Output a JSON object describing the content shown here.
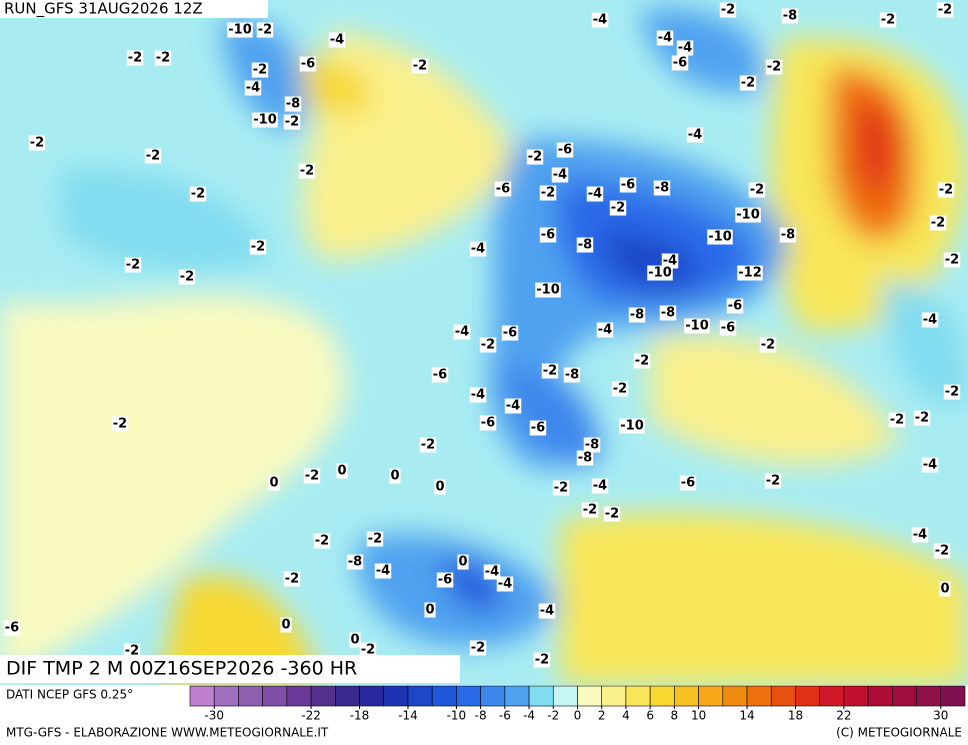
{
  "header": {
    "run": "RUN_GFS 31AUG2026 12Z",
    "title": "DIF TMP 2 M 00Z16SEP2026 -360 HR",
    "source": "DATI NCEP GFS 0.25°",
    "credit": "MTG-GFS - ELABORAZIONE WWW.METEOGIORNALE.IT",
    "copyright": "(C) METEOGIORNALE"
  },
  "colorbar": {
    "lim": [
      -32,
      32
    ],
    "colors": [
      "#c080d0",
      "#a070c0",
      "#9060b0",
      "#8050a8",
      "#6a3a9a",
      "#52308c",
      "#3a2a90",
      "#2a2aa0",
      "#1e32b4",
      "#1e46c8",
      "#2058dc",
      "#2a6ae8",
      "#3c86ec",
      "#50a2f0",
      "#80dcf0",
      "#c8f6f4",
      "#fafac0",
      "#faf08c",
      "#f8e658",
      "#f8d830",
      "#f8c020",
      "#f8a818",
      "#f08c10",
      "#f07010",
      "#e85010",
      "#e03018",
      "#d01828",
      "#c01030",
      "#b00c38",
      "#a00c40",
      "#901048",
      "#801050"
    ],
    "ticks": [
      -30,
      -22,
      -18,
      -14,
      -10,
      -8,
      -6,
      -4,
      -2,
      0,
      2,
      4,
      6,
      8,
      10,
      14,
      18,
      22,
      30
    ]
  },
  "map": {
    "labels": [
      -10,
      -2,
      -2,
      -2,
      -4,
      -6,
      -2,
      -4,
      -8,
      -10,
      -2,
      -2,
      -2,
      -2,
      -2,
      -2,
      -2,
      -2,
      -2,
      -4,
      -2,
      -8,
      -2,
      -2,
      -4,
      -4,
      -6,
      -2,
      -2,
      -4,
      -2,
      -6,
      -4,
      -6,
      -2,
      -4,
      -6,
      -8,
      -2,
      -2,
      -10,
      -6,
      -8,
      -10,
      -8,
      -4,
      -4,
      -10,
      -12,
      -10,
      -6,
      -8,
      -8,
      -10,
      -6,
      -4,
      -6,
      -4,
      -2,
      -2,
      -2,
      -2,
      -8,
      -6,
      -2,
      -4,
      -4,
      -6,
      -6,
      -8,
      -8,
      -10,
      -2,
      -2,
      0,
      -2,
      0,
      0,
      0,
      -2,
      -4,
      -6,
      -2,
      -2,
      -2,
      -4,
      -4,
      -2,
      -2,
      -2,
      -2,
      -4,
      -2,
      -2,
      -2,
      -2,
      -2,
      0,
      -6,
      -4,
      -4,
      -8,
      -4,
      -2,
      0,
      -4,
      -6,
      0,
      0,
      -2,
      -2,
      -2,
      -2,
      0,
      -2
    ]
  }
}
